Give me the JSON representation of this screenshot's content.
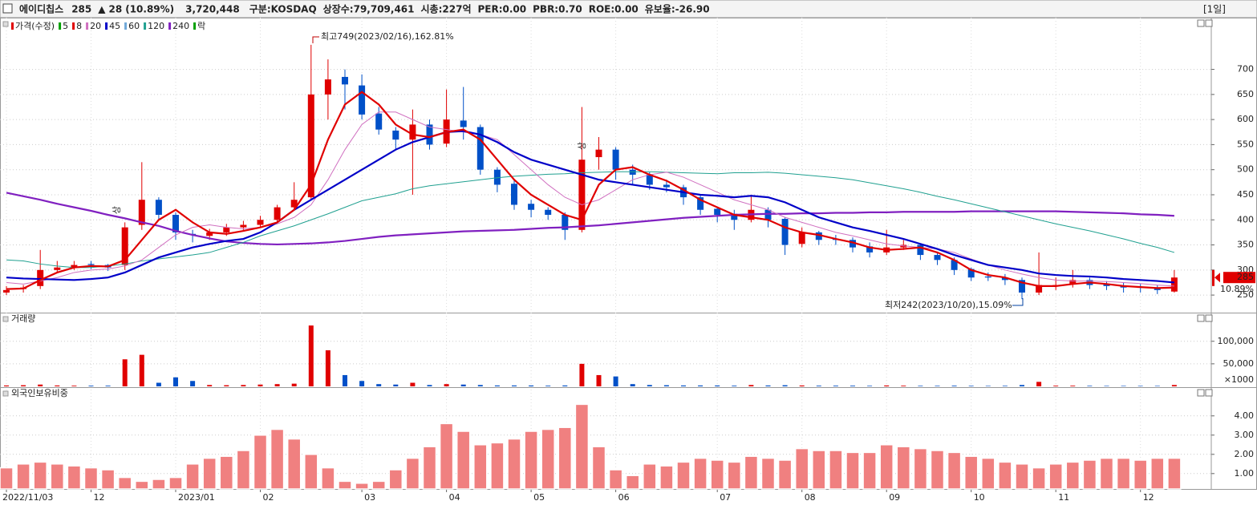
{
  "header": {
    "name": "에이디칩스",
    "price": 285,
    "change_sign": "▲",
    "change": 28,
    "change_pct": "(10.89%)",
    "volume": "3,720,448",
    "market": "구분:KOSDAQ",
    "shares": "상장수:79,709,461",
    "cap": "시총:227억",
    "per": "PER:0.00",
    "pbr": "PBR:0.70",
    "roe": "ROE:0.00",
    "reserve": "유보율:-26.90",
    "period": "[1일]"
  },
  "chart_data": [
    {
      "type": "candlestick",
      "categories": [
        "2022/11/03",
        null,
        null,
        null,
        null,
        "12",
        null,
        null,
        null,
        null,
        "2023/01",
        null,
        null,
        null,
        null,
        "02",
        null,
        null,
        null,
        null,
        null,
        "03",
        null,
        null,
        null,
        null,
        "04",
        null,
        null,
        null,
        null,
        "05",
        null,
        null,
        null,
        null,
        "06",
        null,
        null,
        null,
        null,
        null,
        "07",
        null,
        null,
        null,
        null,
        "08",
        null,
        null,
        null,
        null,
        "09",
        null,
        null,
        null,
        null,
        "10",
        null,
        null,
        null,
        null,
        "11",
        null,
        null,
        null,
        null,
        "12",
        null,
        null
      ],
      "open": [
        255,
        262,
        268,
        300,
        305,
        312,
        310,
        310,
        390,
        440,
        410,
        372,
        368,
        375,
        385,
        390,
        400,
        425,
        445,
        650,
        685,
        668,
        612,
        578,
        560,
        590,
        552,
        598,
        585,
        500,
        472,
        432,
        420,
        410,
        380,
        525,
        540,
        500,
        490,
        470,
        465,
        445,
        422,
        412,
        400,
        420,
        402,
        352,
        375,
        362,
        360,
        347,
        335,
        345,
        350,
        330,
        320,
        302,
        287,
        285,
        280,
        255,
        268,
        272,
        280,
        272,
        268,
        266,
        265,
        257
      ],
      "high": [
        268,
        270,
        340,
        318,
        318,
        318,
        312,
        395,
        515,
        445,
        415,
        380,
        382,
        392,
        398,
        408,
        430,
        475,
        749,
        720,
        700,
        690,
        625,
        585,
        620,
        600,
        660,
        665,
        590,
        505,
        480,
        440,
        425,
        415,
        625,
        565,
        545,
        510,
        495,
        480,
        470,
        450,
        425,
        420,
        450,
        425,
        405,
        385,
        378,
        370,
        365,
        355,
        380,
        360,
        352,
        335,
        325,
        305,
        295,
        292,
        285,
        335,
        285,
        300,
        285,
        278,
        275,
        272,
        270,
        300
      ],
      "low": [
        250,
        255,
        262,
        295,
        300,
        302,
        298,
        300,
        380,
        400,
        360,
        355,
        360,
        368,
        378,
        385,
        395,
        420,
        440,
        600,
        620,
        600,
        570,
        540,
        450,
        540,
        545,
        560,
        490,
        455,
        420,
        405,
        400,
        360,
        375,
        500,
        480,
        470,
        460,
        455,
        430,
        410,
        395,
        380,
        395,
        385,
        330,
        345,
        350,
        350,
        335,
        325,
        330,
        340,
        320,
        310,
        290,
        278,
        278,
        270,
        242,
        250,
        260,
        265,
        262,
        260,
        255,
        255,
        252,
        255
      ],
      "close": [
        260,
        265,
        300,
        305,
        310,
        310,
        305,
        385,
        440,
        410,
        375,
        370,
        375,
        385,
        390,
        400,
        425,
        440,
        650,
        680,
        670,
        610,
        580,
        560,
        590,
        550,
        600,
        585,
        500,
        470,
        430,
        420,
        410,
        380,
        520,
        540,
        500,
        490,
        470,
        465,
        445,
        420,
        410,
        400,
        420,
        400,
        350,
        375,
        360,
        360,
        345,
        335,
        345,
        350,
        330,
        320,
        300,
        285,
        285,
        280,
        255,
        270,
        270,
        280,
        270,
        268,
        265,
        265,
        260,
        285
      ],
      "up_color": "#e00000",
      "down_color": "#0050c8",
      "ylim": [
        215,
        800
      ],
      "yticks": [
        250,
        300,
        350,
        400,
        450,
        500,
        550,
        600,
        650,
        700
      ],
      "legend": [
        {
          "name": "가격(수정)",
          "color": "#e00000"
        },
        {
          "name": "5",
          "color": "#00a000"
        },
        {
          "name": "8",
          "color": "#e00000"
        },
        {
          "name": "20",
          "color": "#d070c0"
        },
        {
          "name": "45",
          "color": "#0000c8"
        },
        {
          "name": "60",
          "color": "#70a8d8"
        },
        {
          "name": "120",
          "color": "#20a090"
        },
        {
          "name": "240",
          "color": "#8020c0"
        },
        {
          "name": "락",
          "color": "#00a000"
        }
      ],
      "ma_lines": [
        {
          "color": "#8020c0",
          "width": 2.2,
          "values": [
            454,
            447,
            440,
            432,
            425,
            418,
            410,
            403,
            395,
            388,
            378,
            370,
            363,
            357,
            354,
            352,
            351,
            352,
            353,
            355,
            358,
            362,
            366,
            369,
            371,
            373,
            375,
            377,
            378,
            379,
            380,
            382,
            384,
            385,
            387,
            389,
            392,
            395,
            398,
            401,
            404,
            406,
            408,
            410,
            411,
            412,
            412,
            413,
            413,
            414,
            414,
            415,
            415,
            416,
            416,
            416,
            416,
            417,
            417,
            417,
            417,
            417,
            417,
            416,
            415,
            414,
            413,
            411,
            410,
            408
          ]
        },
        {
          "color": "#20a090",
          "width": 1,
          "values": [
            320,
            318,
            312,
            308,
            305,
            305,
            308,
            312,
            318,
            322,
            326,
            330,
            335,
            345,
            355,
            368,
            378,
            388,
            400,
            412,
            425,
            438,
            445,
            452,
            462,
            468,
            472,
            476,
            480,
            484,
            487,
            489,
            491,
            492,
            494,
            495,
            496,
            496,
            496,
            495,
            494,
            493,
            492,
            494,
            494,
            495,
            493,
            490,
            487,
            484,
            480,
            474,
            468,
            462,
            455,
            447,
            440,
            432,
            424,
            416,
            408,
            400,
            392,
            385,
            378,
            370,
            362,
            353,
            345,
            335
          ]
        },
        {
          "color": "#d070c0",
          "width": 1,
          "values": [
            275,
            272,
            278,
            285,
            295,
            300,
            302,
            308,
            320,
            345,
            370,
            385,
            390,
            385,
            382,
            385,
            392,
            405,
            430,
            480,
            540,
            590,
            615,
            615,
            600,
            585,
            580,
            575,
            570,
            560,
            530,
            500,
            470,
            445,
            430,
            440,
            460,
            480,
            490,
            495,
            485,
            470,
            455,
            440,
            430,
            420,
            405,
            395,
            385,
            375,
            368,
            360,
            352,
            348,
            345,
            342,
            335,
            322,
            310,
            300,
            292,
            285,
            280,
            278,
            278,
            277,
            275,
            273,
            270,
            268
          ]
        },
        {
          "color": "#0000c8",
          "width": 2.2,
          "values": [
            285,
            283,
            282,
            281,
            280,
            282,
            285,
            295,
            310,
            325,
            335,
            345,
            352,
            358,
            362,
            375,
            395,
            420,
            440,
            460,
            480,
            500,
            520,
            540,
            555,
            565,
            575,
            577,
            570,
            555,
            535,
            520,
            510,
            500,
            490,
            480,
            475,
            470,
            465,
            460,
            455,
            450,
            448,
            445,
            448,
            445,
            435,
            420,
            405,
            395,
            385,
            378,
            370,
            362,
            352,
            342,
            330,
            320,
            310,
            305,
            300,
            293,
            290,
            288,
            287,
            285,
            282,
            280,
            278,
            275
          ]
        },
        {
          "color": "#e00000",
          "width": 2.2,
          "values": [
            262,
            263,
            280,
            295,
            305,
            308,
            307,
            320,
            360,
            400,
            420,
            395,
            375,
            372,
            378,
            385,
            395,
            420,
            470,
            560,
            630,
            655,
            630,
            590,
            570,
            565,
            575,
            580,
            560,
            520,
            480,
            450,
            430,
            410,
            400,
            470,
            500,
            505,
            490,
            478,
            460,
            440,
            425,
            410,
            405,
            400,
            385,
            375,
            370,
            362,
            355,
            345,
            340,
            342,
            345,
            335,
            320,
            300,
            290,
            285,
            275,
            268,
            268,
            272,
            275,
            272,
            268,
            266,
            264,
            265
          ]
        }
      ],
      "annotations": [
        "최고749(2023/02/16),162.81%",
        "최저242(2023/10/20),15.09%",
        "상",
        "상"
      ],
      "last_change_label": "10.89%"
    },
    {
      "type": "bar",
      "title": "거래량",
      "unit": "×1000",
      "values": [
        2000,
        2500,
        4000,
        2000,
        1500,
        1500,
        1500,
        60000,
        70000,
        8000,
        20000,
        12000,
        3000,
        2500,
        3000,
        4000,
        5000,
        6000,
        135000,
        80000,
        25000,
        12000,
        5000,
        4000,
        8000,
        3000,
        5000,
        4000,
        3000,
        2000,
        2000,
        2000,
        1500,
        2000,
        50000,
        25000,
        22000,
        5000,
        3000,
        2500,
        2000,
        2000,
        2000,
        1500,
        3000,
        2000,
        2500,
        2000,
        1500,
        1500,
        1500,
        1200,
        2000,
        1500,
        1200,
        1200,
        1500,
        1200,
        1000,
        1200,
        3000,
        10000,
        1500,
        1500,
        1200,
        1000,
        1000,
        1000,
        1000,
        3000
      ],
      "ylim": [
        0,
        160000
      ],
      "yticks": [
        {
          "value": 50000,
          "label": "50,000"
        },
        {
          "value": 100000,
          "label": "100,000"
        }
      ]
    },
    {
      "type": "bar",
      "title": "외국인보유비중",
      "color": "#f08080",
      "values": [
        1.3,
        1.5,
        1.6,
        1.5,
        1.4,
        1.3,
        1.2,
        0.8,
        0.6,
        0.7,
        0.8,
        1.5,
        1.8,
        1.9,
        2.2,
        3.0,
        3.3,
        2.8,
        2.0,
        1.3,
        0.6,
        0.5,
        0.6,
        1.2,
        1.8,
        2.4,
        3.6,
        3.2,
        2.5,
        2.6,
        2.8,
        3.2,
        3.3,
        3.4,
        4.6,
        2.4,
        1.2,
        0.9,
        1.5,
        1.4,
        1.6,
        1.8,
        1.7,
        1.6,
        1.9,
        1.8,
        1.7,
        2.3,
        2.2,
        2.2,
        2.1,
        2.1,
        2.5,
        2.4,
        2.3,
        2.2,
        2.1,
        1.9,
        1.8,
        1.6,
        1.5,
        1.3,
        1.5,
        1.6,
        1.7,
        1.8,
        1.8,
        1.7,
        1.8,
        1.8
      ],
      "ylim": [
        0.2,
        5.2
      ],
      "yticks": [
        {
          "value": 1,
          "label": "1.00"
        },
        {
          "value": 2,
          "label": "2.00"
        },
        {
          "value": 3,
          "label": "3.00"
        },
        {
          "value": 4,
          "label": "4.00"
        }
      ]
    }
  ]
}
